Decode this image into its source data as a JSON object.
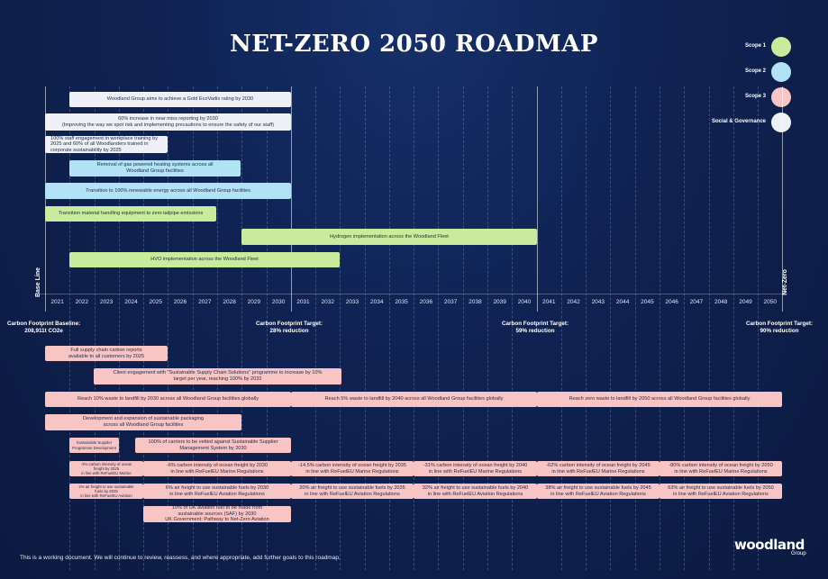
{
  "title": "NET-ZERO 2050 ROADMAP",
  "legend": [
    {
      "label": "Scope 1",
      "color": "#c8ec9b"
    },
    {
      "label": "Scope 2",
      "color": "#b2e2f6"
    },
    {
      "label": "Scope 3",
      "color": "#f9c5c4"
    },
    {
      "label": "Social & Governance",
      "color": "#eef0f5"
    }
  ],
  "axis": {
    "start_label": "Base Line",
    "end_label": "Net-Zero",
    "years": [
      "2021",
      "2022",
      "2023",
      "2024",
      "2025",
      "2026",
      "2027",
      "2028",
      "2029",
      "2030",
      "2031",
      "2032",
      "2033",
      "2034",
      "2035",
      "2036",
      "2037",
      "2038",
      "2039",
      "2040",
      "2041",
      "2042",
      "2043",
      "2044",
      "2045",
      "2046",
      "2047",
      "2048",
      "2049",
      "2050"
    ]
  },
  "targets": [
    {
      "line1": "Carbon Footprint Baseline:",
      "line2": "208,911t CO2e"
    },
    {
      "line1": "Carbon Footprint Target:",
      "line2": "28% reduction"
    },
    {
      "line1": "Carbon Footprint Target:",
      "line2": "59% reduction"
    },
    {
      "line1": "Carbon Footprint Target:",
      "line2": "90% reduction"
    }
  ],
  "upper_goals": {
    "ecovadis": "Woodland Group aims to achieve a Gold EcoVadis rating by 2030",
    "near_miss": "60% increase in near miss reporting by 2030\n(Improving the way we spot risk and implementing precautions to ensure the safety of our staff)",
    "staff": "100% staff engagement in workplace training by 2025 and 60% of all Woodlanders trained in corporate sustainability by 2025",
    "gas_heating": "Removal of gas powered heating systems across all\nWoodland Group facilities",
    "renewable": "Transition to 100% renewable energy across all Woodland Group facilities",
    "handling": "Transition material handling equipment to zero tailpipe emissions",
    "hydrogen": "Hydrogen implementation across the Woodland Fleet",
    "hvo": "HVO implementation across the Woodland Fleet"
  },
  "lower_goals": {
    "supply_chain": "Full supply chain carbon reports\navailable to all customers by 2025",
    "client_engagement": "Client engagement with \"Sustainable Supply Chain Solutions\" programme to increase by 10%\ntarget per year, reaching 100% by 2032",
    "waste_2030": "Reach 10% waste to landfill by 2030 across all Woodland Group facilities globally",
    "waste_2040": "Reach 5% waste to landfill by 2040 across all Woodland Group facilities globally",
    "waste_2050": "Reach zero waste to landfill by 2050 across all Woodland Group facilities globally",
    "packaging": "Development and expansion of sustainable packaging\nacross all Woodland Group facilities",
    "supplier_programme": "Sustainable Supplier\nProgramme Development",
    "carriers_vetted": "100% of carriers to be vetted against Sustainable Supplier\nManagement System by 2030",
    "ocean_2025": "-2% carbon intensity of ocean\nfreight by 2025\nin line with ReFuelEU Marine",
    "ocean_2030": "-6% carbon intensity of ocean freight by 2030\nin line with ReFuelEU Marine Regulations",
    "ocean_2035": "-14.5% carbon intensity of ocean freight by 2035\nin line with ReFuelEU Marine Regulations",
    "ocean_2040": "-31% carbon intensity of ocean freight by 2040\nin line with ReFuelEU Marine Regulations",
    "ocean_2045": "-62% carbon intensity of ocean freight by 2045\nin line with ReFuelEU Marine Regulations",
    "ocean_2050": "-80% carbon intensity of ocean freight by 2050\nin line with ReFuelEU Marine Regulations",
    "air_2025": "2% air freight to use sustainable\nfuels by 2025\nin line with ReFuelEU Aviation",
    "air_2030": "6% air freight to use sustainable fuels by 2030\nin line with ReFuelEU Aviation Regulations",
    "air_2035": "20% air freight to use sustainable fuels by 2035\nin line with ReFuelEU Aviation Regulations",
    "air_2040": "32% air freight to use sustainable fuels by 2040\nin line with ReFuelEU Aviation Regulations",
    "air_2045": "38% air freight to use sustainable fuels by 2045\nin line with ReFuelEU Aviation Regulations",
    "air_2050": "63% air freight to use sustainable fuels by 2050\nin line with ReFuelEU Aviation Regulations",
    "uk_aviation": "10% of UK aviation fuel to be made from\nsustainable sources (SAF) by 2030\nUK Government: Pathway to Net-Zero Aviation"
  },
  "footer": "This is a working document. We will continue to review, reassess, and where appropriate, add further goals to this roadmap.",
  "logo": {
    "name": "woodland",
    "sub": "Group"
  }
}
